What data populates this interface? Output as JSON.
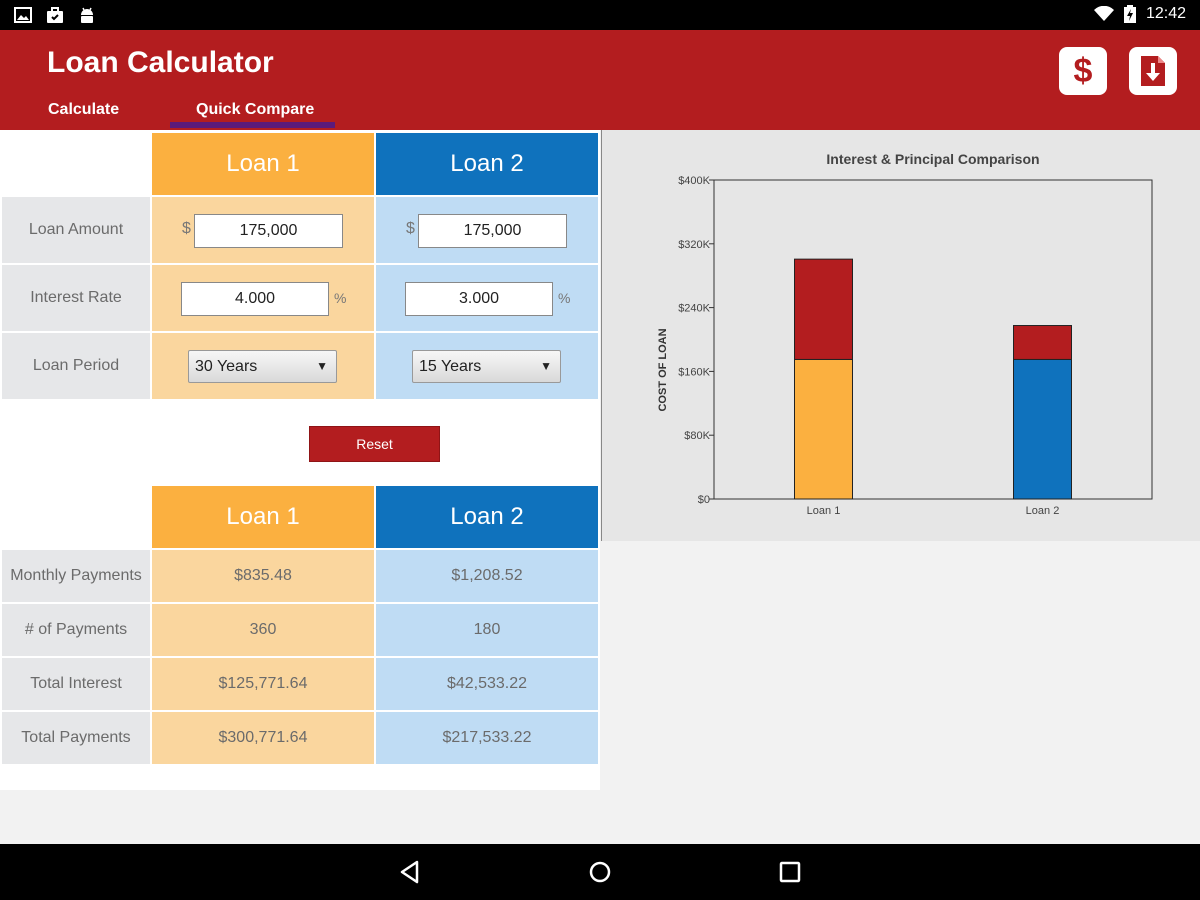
{
  "status_bar": {
    "time": "12:42",
    "left_icons": [
      "image-icon",
      "briefcase-icon",
      "android-icon"
    ],
    "right_icons": [
      "wifi-icon",
      "battery-icon"
    ]
  },
  "app": {
    "title": "Loan Calculator",
    "tabs": [
      {
        "label": "Calculate",
        "selected": false
      },
      {
        "label": "Quick Compare",
        "selected": true
      }
    ],
    "actions": [
      {
        "icon": "dollar-icon",
        "label": "$"
      },
      {
        "icon": "pdf-download-icon"
      }
    ],
    "accent_color": "#b31d1f"
  },
  "inputs": {
    "headers": [
      "Loan 1",
      "Loan 2"
    ],
    "rows": [
      {
        "label": "Loan Amount",
        "prefix": "$",
        "values": [
          "175,000",
          "175,000"
        ]
      },
      {
        "label": "Interest Rate",
        "suffix": "%",
        "values": [
          "4.000",
          "3.000"
        ]
      },
      {
        "label": "Loan Period",
        "values": [
          "30 Years",
          "15 Years"
        ],
        "dropdown_arrow": "▼"
      }
    ],
    "reset_label": "Reset"
  },
  "results": {
    "headers": [
      "Loan 1",
      "Loan 2"
    ],
    "rows": [
      {
        "label": "Monthly Payments",
        "values": [
          "$835.48",
          "$1,208.52"
        ]
      },
      {
        "label": "# of Payments",
        "values": [
          "360",
          "180"
        ]
      },
      {
        "label": "Total Interest",
        "values": [
          "$125,771.64",
          "$42,533.22"
        ]
      },
      {
        "label": "Total Payments",
        "values": [
          "$300,771.64",
          "$217,533.22"
        ]
      }
    ]
  },
  "chart_data": {
    "type": "bar",
    "stacked": true,
    "title": "Interest & Principal Comparison",
    "ylabel": "COST OF LOAN",
    "xlabel": "",
    "categories": [
      "Loan 1",
      "Loan 2"
    ],
    "series": [
      {
        "values": [
          175000,
          175000
        ],
        "colors": [
          "#fbb040",
          "#0f72bd"
        ]
      },
      {
        "values": [
          125771.64,
          42533.22
        ],
        "colors": [
          "#b31d1f",
          "#b31d1f"
        ]
      }
    ],
    "ylim": [
      0,
      400000
    ],
    "yticks": [
      "$0",
      "$80K",
      "$160K",
      "$240K",
      "$320K",
      "$400K"
    ],
    "ytick_values": [
      0,
      80000,
      160000,
      240000,
      320000,
      400000
    ],
    "grid": false,
    "legend": "none"
  }
}
